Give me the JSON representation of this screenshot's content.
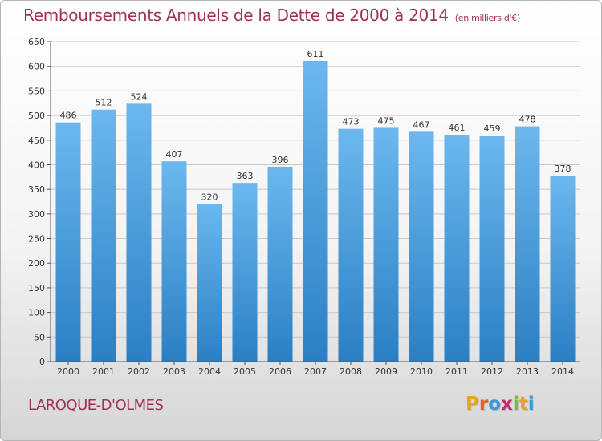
{
  "header": {
    "title": "Remboursements Annuels de la Dette de 2000 à 2014",
    "unit": "(en milliers d'€)"
  },
  "footer": {
    "commune": "LAROQUE-D'OLMES",
    "logo_letters": [
      "P",
      "r",
      "o",
      "x",
      "i",
      "t",
      "i"
    ],
    "logo_colors": [
      "#e8a51c",
      "#e8621c",
      "#3a9ad9",
      "#c22a6a",
      "#7ab83a",
      "#e8a51c",
      "#3a9ad9"
    ]
  },
  "colors": {
    "bar_top": "#6cb8ee",
    "bar_bottom": "#2a7fc4",
    "grid": "#c8c8c8",
    "axis": "#555555",
    "text": "#333333"
  },
  "chart_data": {
    "type": "bar",
    "categories": [
      "2000",
      "2001",
      "2002",
      "2003",
      "2004",
      "2005",
      "2006",
      "2007",
      "2008",
      "2009",
      "2010",
      "2011",
      "2012",
      "2013",
      "2014"
    ],
    "values": [
      486,
      512,
      524,
      407,
      320,
      363,
      396,
      611,
      473,
      475,
      467,
      461,
      459,
      478,
      378
    ],
    "data_labels": [
      "486",
      "512",
      "524",
      "407",
      "320",
      "363",
      "396",
      "611",
      "473",
      "475",
      "467",
      "461",
      "459",
      "478",
      "378"
    ],
    "ylim": [
      0,
      650
    ],
    "yticks": [
      0,
      50,
      100,
      150,
      200,
      250,
      300,
      350,
      400,
      450,
      500,
      550,
      600,
      650
    ],
    "ytick_labels": [
      "0",
      "50",
      "100",
      "150",
      "200",
      "250",
      "300",
      "350",
      "400",
      "450",
      "500",
      "550",
      "600",
      "650"
    ],
    "grid": true,
    "legend": false
  }
}
